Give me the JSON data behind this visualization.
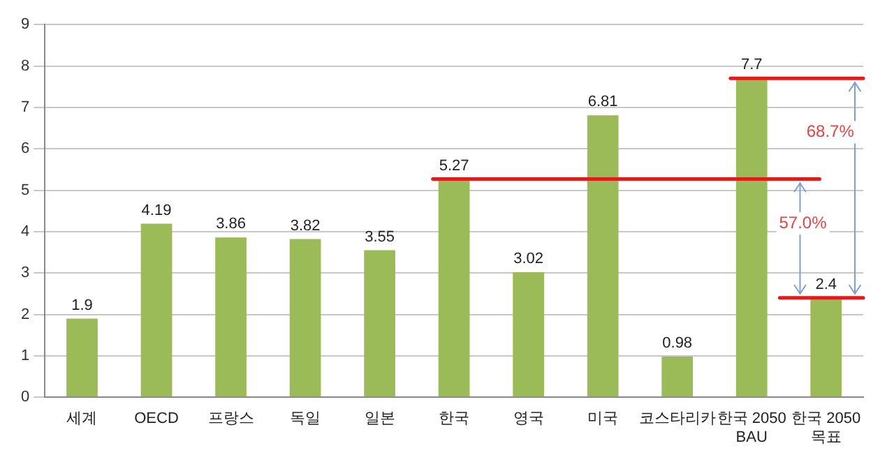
{
  "chart_data": {
    "type": "bar",
    "categories": [
      "세계",
      "OECD",
      "프랑스",
      "독일",
      "일본",
      "한국",
      "영국",
      "미국",
      "코스타리카",
      "한국 2050 BAU",
      "한국 2050 목표"
    ],
    "values": [
      1.9,
      4.19,
      3.86,
      3.82,
      3.55,
      5.27,
      3.02,
      6.81,
      0.98,
      7.7,
      2.4
    ],
    "color": "#9bbb59",
    "ylim": [
      0,
      9
    ],
    "yticks": [
      0,
      1,
      2,
      3,
      4,
      5,
      6,
      7,
      8,
      9
    ],
    "grid": "y",
    "data_labels": true,
    "legend": false,
    "ref_lines": [
      {
        "axis": "y",
        "value": 5.27,
        "color": "#e31a1a"
      },
      {
        "axis": "y",
        "value": 7.7,
        "color": "#e31a1a"
      },
      {
        "axis": "y",
        "value": 2.4,
        "color": "#e31a1a"
      }
    ],
    "annotations": [
      {
        "text": "57.0%",
        "y": 4.2
      },
      {
        "text": "68.7%",
        "y": 6.4
      }
    ]
  }
}
